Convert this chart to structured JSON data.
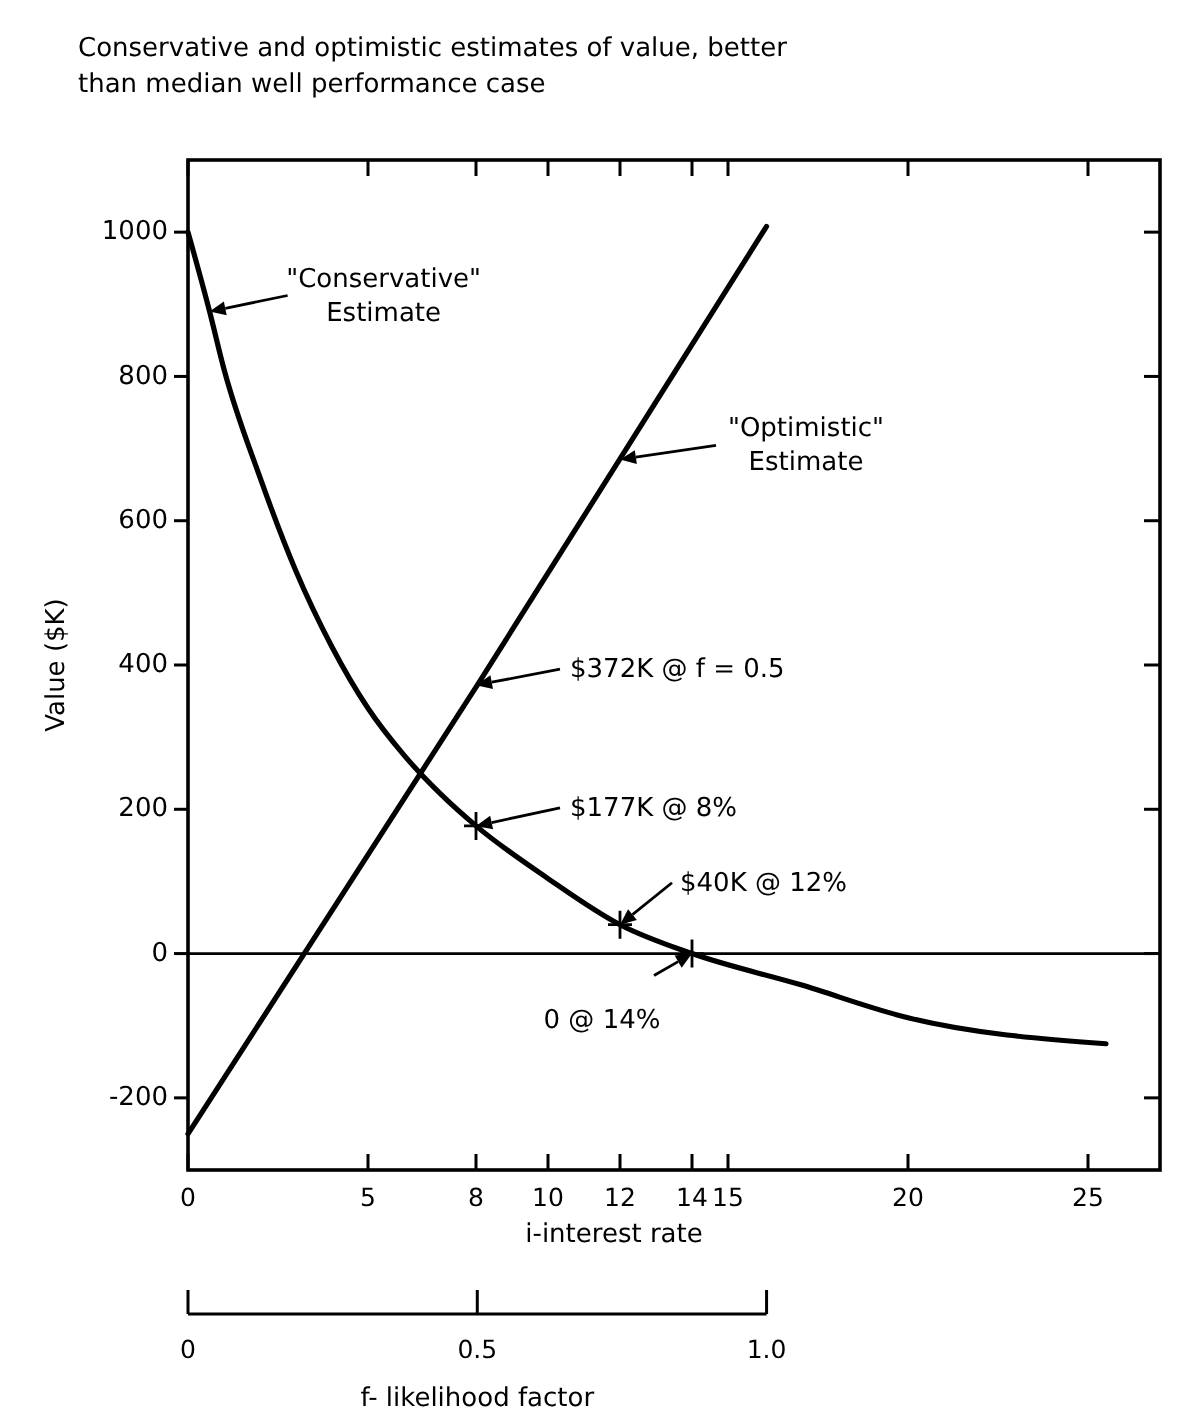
{
  "chart_data": {
    "type": "line",
    "title": "Conservative and optimistic estimates of value, better than median well performance case",
    "xlabel": "i-interest rate",
    "x2label": "f- likelihood factor",
    "ylabel": "Value ($K)",
    "xlim": [
      0,
      27
    ],
    "xticks": [
      0,
      5,
      8,
      10,
      12,
      14,
      15,
      20,
      25
    ],
    "x2lim": [
      0,
      1.68
    ],
    "x2ticks": [
      0,
      0.5,
      {
        "value": 1,
        "label": "1.0"
      }
    ],
    "ylim": [
      -300,
      1100
    ],
    "yticks": [
      -200,
      0,
      200,
      400,
      600,
      800,
      1000
    ],
    "grid": false,
    "marker": "none",
    "line_style": "solid",
    "series": [
      {
        "color": "#000000",
        "x": [
          0,
          0.6,
          1,
          2,
          3,
          4,
          5,
          6,
          7,
          8,
          10,
          12,
          14,
          17,
          20,
          25.5
        ],
        "values": [
          1000,
          890,
          810,
          660,
          530,
          425,
          340,
          275,
          222,
          177,
          104,
          40,
          0,
          -43,
          -89,
          -125
        ]
      },
      {
        "color": "#000000",
        "axis": "x2",
        "x": [
          0,
          0.5,
          1
        ],
        "values": [
          -250,
          372,
          1008
        ]
      },
      {
        "type": "scatter",
        "marker": "cross",
        "color": "#000000",
        "x": [
          8,
          12,
          14
        ],
        "values": [
          177,
          40,
          0
        ]
      }
    ],
    "ref_lines": [
      {
        "axis": "y",
        "value": 0,
        "color": "#000000"
      }
    ],
    "annotations": [
      {
        "text": "\"Conservative\" Estimate",
        "x": 0.6,
        "y": 890
      },
      {
        "text": "\"Optimistic\" Estimate",
        "x": 12,
        "y": 685
      },
      {
        "text": "$372K @ f = 0.5",
        "x": 8,
        "y": 372
      },
      {
        "text": "$177K @ 8%",
        "x": 8,
        "y": 177
      },
      {
        "text": "$40K @ 12%",
        "x": 12,
        "y": 40
      },
      {
        "text": "0 @ 14%",
        "x": 14,
        "y": 0
      }
    ]
  }
}
